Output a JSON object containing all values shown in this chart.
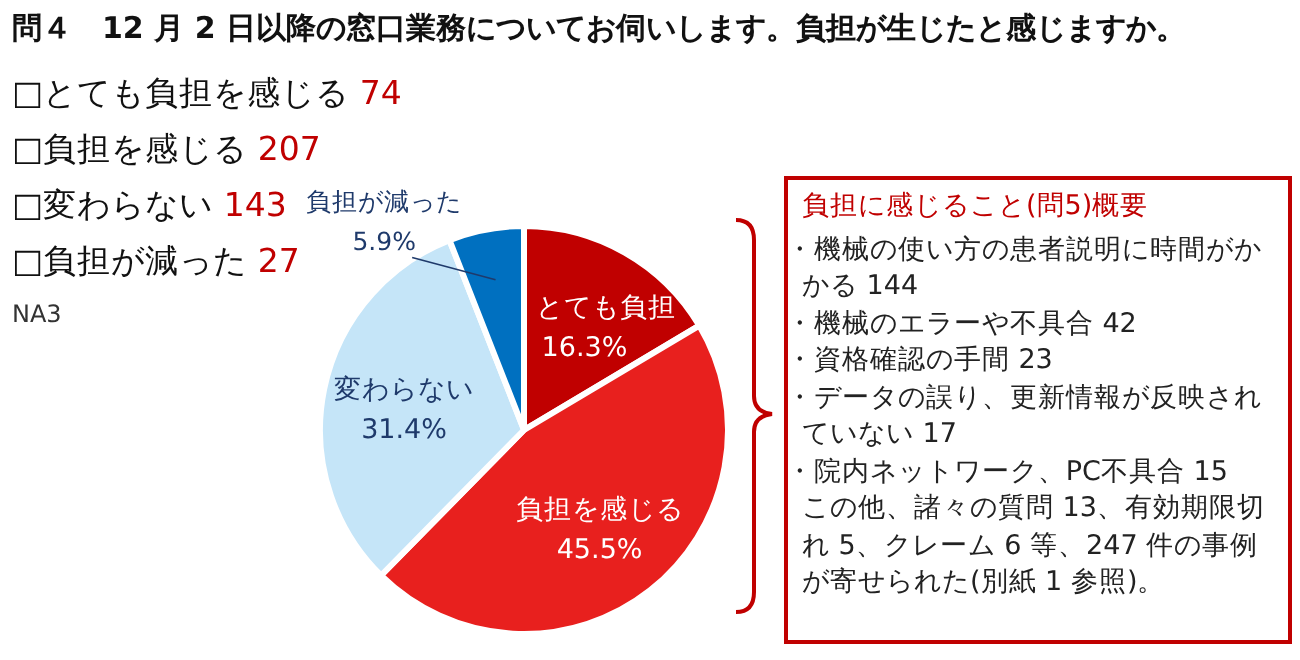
{
  "chart_data": {
    "type": "pie",
    "title": "問４　12 月 2 日以降の窓口業務についてお伺いします。負担が生じたと感じますか。",
    "categories": [
      "とても負担",
      "負担を感じる",
      "変わらない",
      "負担が減った"
    ],
    "values": [
      16.3,
      45.5,
      31.4,
      5.9
    ],
    "value_labels": [
      "16.3%",
      "45.5%",
      "31.4%",
      "5.9%"
    ],
    "colors": [
      "#c00000",
      "#e8201e",
      "#c5e5f8",
      "#0070c0"
    ],
    "annotations": [
      "□とても負担を感じる 74",
      "□負担を感じる 207",
      "□変わらない 143",
      "□負担が減った 27",
      "NA3",
      "負担に感じること(問5)概要",
      "・機械の使い方の患者説明に時間がかかる 144",
      "・機械のエラーや不具合 42",
      "・資格確認の手間 23",
      "・データの誤り、更新情報が反映されていない 17",
      "・院内ネットワーク、PC不具合 15",
      "この他、諸々の質問 13、有効期限切れ 5、クレーム 6 等、247 件の事例が寄せられた(別紙 1 参照)。"
    ]
  }
}
